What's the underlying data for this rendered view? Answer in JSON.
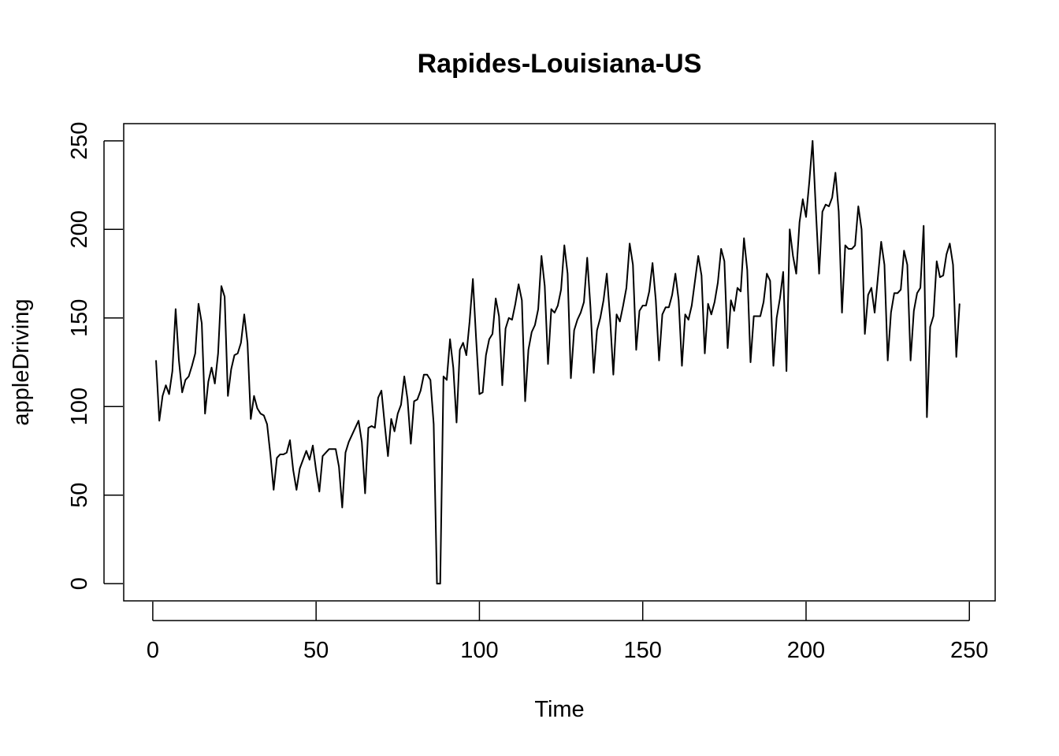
{
  "chart_data": {
    "type": "line",
    "title": "Rapides-Louisiana-US",
    "xlabel": "Time",
    "ylabel": "appleDriving",
    "xlim": [
      -8.9,
      257.9
    ],
    "ylim": [
      -9.7,
      259.7
    ],
    "x_ticks": [
      0,
      50,
      100,
      150,
      200,
      250
    ],
    "y_ticks": [
      0,
      50,
      100,
      150,
      200,
      250
    ],
    "grid": false,
    "series": [
      {
        "color": "#000000",
        "x_start": 1,
        "values": [
          126,
          92,
          106,
          112,
          107,
          120,
          155,
          126,
          108,
          115,
          117,
          123,
          130,
          158,
          147,
          96,
          114,
          122,
          113,
          130,
          168,
          162,
          106,
          121,
          129,
          130,
          136,
          152,
          136,
          93,
          106,
          99,
          96,
          95,
          90,
          73,
          53,
          71,
          73,
          73,
          74,
          81,
          64,
          53,
          65,
          70,
          75,
          70,
          78,
          64,
          52,
          72,
          74,
          76,
          76,
          76,
          66,
          43,
          74,
          80,
          84,
          88,
          92,
          80,
          51,
          88,
          89,
          88,
          105,
          109,
          90,
          72,
          93,
          86,
          96,
          101,
          117,
          104,
          79,
          103,
          104,
          109,
          118,
          118,
          115,
          90,
          0,
          0,
          117,
          115,
          138,
          122,
          91,
          132,
          136,
          129,
          148,
          172,
          138,
          107,
          108,
          129,
          138,
          141,
          161,
          151,
          112,
          144,
          150,
          149,
          158,
          169,
          160,
          103,
          132,
          142,
          146,
          155,
          185,
          168,
          124,
          155,
          153,
          157,
          166,
          191,
          175,
          116,
          143,
          149,
          153,
          159,
          184,
          156,
          119,
          143,
          150,
          160,
          175,
          150,
          118,
          152,
          148,
          157,
          167,
          192,
          180,
          132,
          154,
          157,
          157,
          165,
          181,
          160,
          126,
          152,
          156,
          156,
          163,
          175,
          160,
          123,
          152,
          149,
          157,
          171,
          185,
          174,
          130,
          158,
          152,
          159,
          170,
          189,
          182,
          133,
          160,
          154,
          167,
          165,
          195,
          177,
          125,
          151,
          151,
          151,
          159,
          175,
          171,
          123,
          150,
          161,
          176,
          120,
          200,
          185,
          175,
          204,
          217,
          207,
          227,
          250,
          211,
          175,
          210,
          214,
          213,
          218,
          232,
          210,
          153,
          191,
          189,
          189,
          191,
          213,
          200,
          141,
          163,
          167,
          153,
          173,
          193,
          180,
          126,
          153,
          164,
          164,
          166,
          188,
          180,
          126,
          154,
          164,
          167,
          202,
          94,
          145,
          151,
          182,
          173,
          174,
          186,
          192,
          180,
          128,
          158
        ]
      }
    ]
  }
}
